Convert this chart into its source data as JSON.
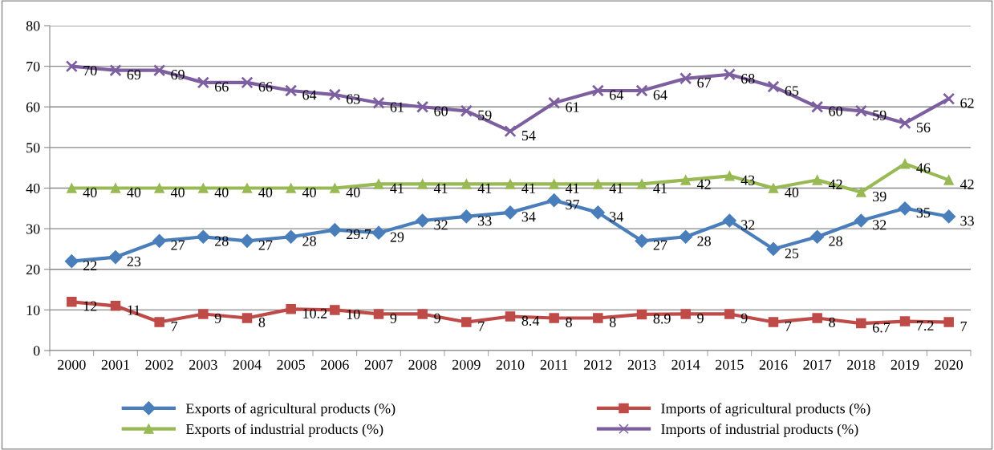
{
  "chart_data": {
    "type": "line",
    "categories": [
      "2000",
      "2001",
      "2002",
      "2003",
      "2004",
      "2005",
      "2006",
      "2007",
      "2008",
      "2009",
      "2010",
      "2011",
      "2012",
      "2013",
      "2014",
      "2015",
      "2016",
      "2017",
      "2018",
      "2019",
      "2020"
    ],
    "series": [
      {
        "name": "Exports of agricultural products (%)",
        "color": "#4a7ebb",
        "marker": "diamond",
        "values": [
          22,
          23,
          27,
          28,
          27,
          28,
          29.7,
          29,
          32,
          33,
          34,
          37,
          34,
          27,
          28,
          32,
          25,
          28,
          32,
          35,
          33
        ]
      },
      {
        "name": "Imports of agricultural products (%)",
        "color": "#be4b48",
        "marker": "square",
        "values": [
          12,
          11,
          7,
          9,
          8,
          10.2,
          10,
          9,
          9,
          7,
          8.4,
          8,
          8,
          8.9,
          9,
          9,
          7,
          8,
          6.7,
          7.2,
          7
        ]
      },
      {
        "name": "Exports of industrial products (%)",
        "color": "#98b954",
        "marker": "triangle",
        "values": [
          40,
          40,
          40,
          40,
          40,
          40,
          40,
          41,
          41,
          41,
          41,
          41,
          41,
          41,
          42,
          43,
          40,
          42,
          39,
          46,
          42
        ]
      },
      {
        "name": "Imports of industrial products (%)",
        "color": "#7d5fa0",
        "marker": "cross",
        "values": [
          70,
          69,
          69,
          66,
          66,
          64,
          63,
          61,
          60,
          59,
          54,
          61,
          64,
          64,
          67,
          68,
          65,
          60,
          59,
          56,
          62
        ]
      }
    ],
    "ylim": [
      0,
      80
    ],
    "yticks": [
      0,
      10,
      20,
      30,
      40,
      50,
      60,
      70,
      80
    ],
    "grid": "y",
    "legend": "bottom",
    "data_labels": true,
    "line_style": "solid"
  }
}
